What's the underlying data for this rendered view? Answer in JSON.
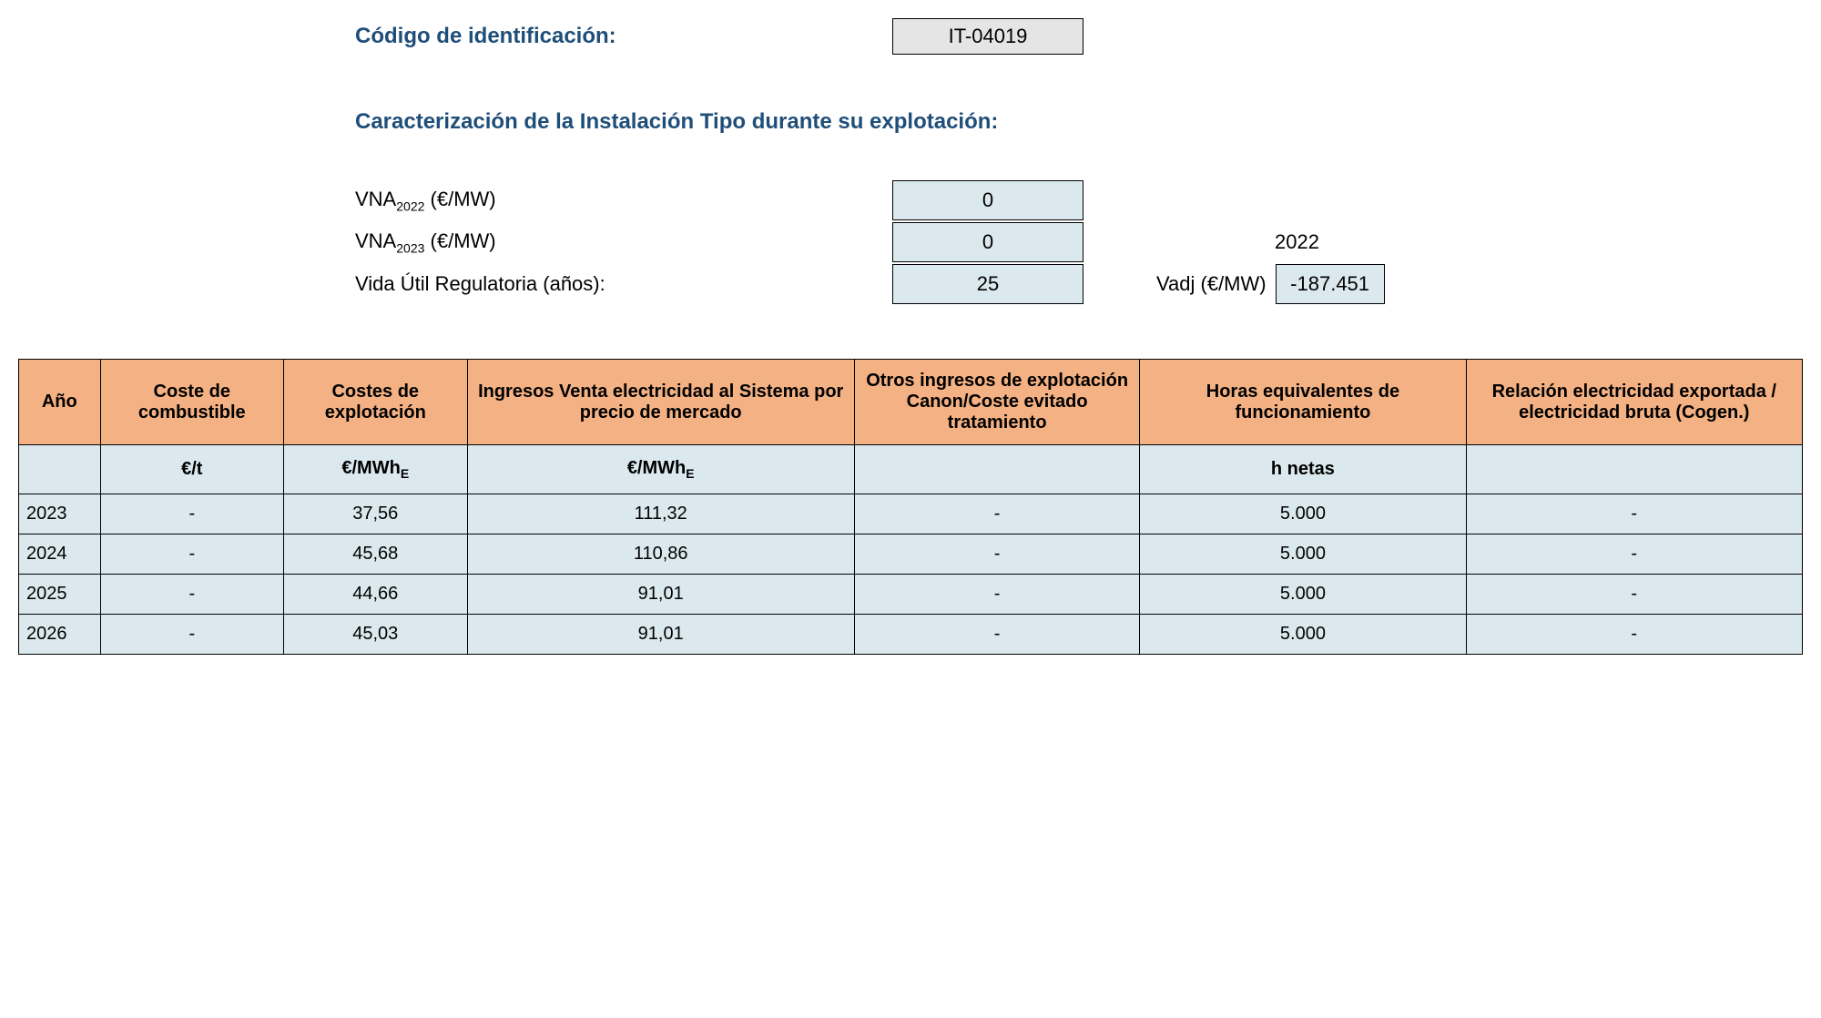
{
  "header": {
    "id_label": "Código de identificación:",
    "id_value": "IT-04019",
    "section_title": "Caracterización de la Instalación Tipo durante su explotación:"
  },
  "params": {
    "vna2022_label": "VNA",
    "vna2022_sub": "2022",
    "vna2022_unit": " (€/MW)",
    "vna2022_value": "0",
    "vna2023_label": "VNA",
    "vna2023_sub": "2023",
    "vna2023_unit": " (€/MW)",
    "vna2023_value": "0",
    "year_ref": "2022",
    "vida_util_label": "Vida Útil Regulatoria (años):",
    "vida_util_value": "25",
    "vadj_label": "Vadj (€/MW)",
    "vadj_value": "-187.451"
  },
  "table": {
    "headers": {
      "ano": "Año",
      "combustible": "Coste de combustible",
      "explotacion": "Costes de explotación",
      "ingresos": "Ingresos Venta electricidad al Sistema por precio de mercado",
      "otros": "Otros ingresos de explotación Canon/Coste evitado tratamiento",
      "horas": "Horas equivalentes de funcionamiento",
      "relacion": "Relación electricidad exportada / electricidad bruta (Cogen.)"
    },
    "units": {
      "ano": "",
      "combustible": "€/t",
      "explotacion_pre": "€/MWh",
      "explotacion_sub": "E",
      "ingresos_pre": "€/MWh",
      "ingresos_sub": "E",
      "otros": "",
      "horas": "h netas",
      "relacion": ""
    },
    "rows": [
      {
        "ano": "2023",
        "combustible": "-",
        "explotacion": "37,56",
        "ingresos": "111,32",
        "otros": "-",
        "horas": "5.000",
        "relacion": "-"
      },
      {
        "ano": "2024",
        "combustible": "-",
        "explotacion": "45,68",
        "ingresos": "110,86",
        "otros": "-",
        "horas": "5.000",
        "relacion": "-"
      },
      {
        "ano": "2025",
        "combustible": "-",
        "explotacion": "44,66",
        "ingresos": "91,01",
        "otros": "-",
        "horas": "5.000",
        "relacion": "-"
      },
      {
        "ano": "2026",
        "combustible": "-",
        "explotacion": "45,03",
        "ingresos": "91,01",
        "otros": "-",
        "horas": "5.000",
        "relacion": "-"
      }
    ]
  },
  "colors": {
    "heading_color": "#1f4e79",
    "header_bg": "#f4b183",
    "data_bg": "#dbe9ee",
    "id_box_bg": "#e5e5e5",
    "border": "#000000"
  }
}
